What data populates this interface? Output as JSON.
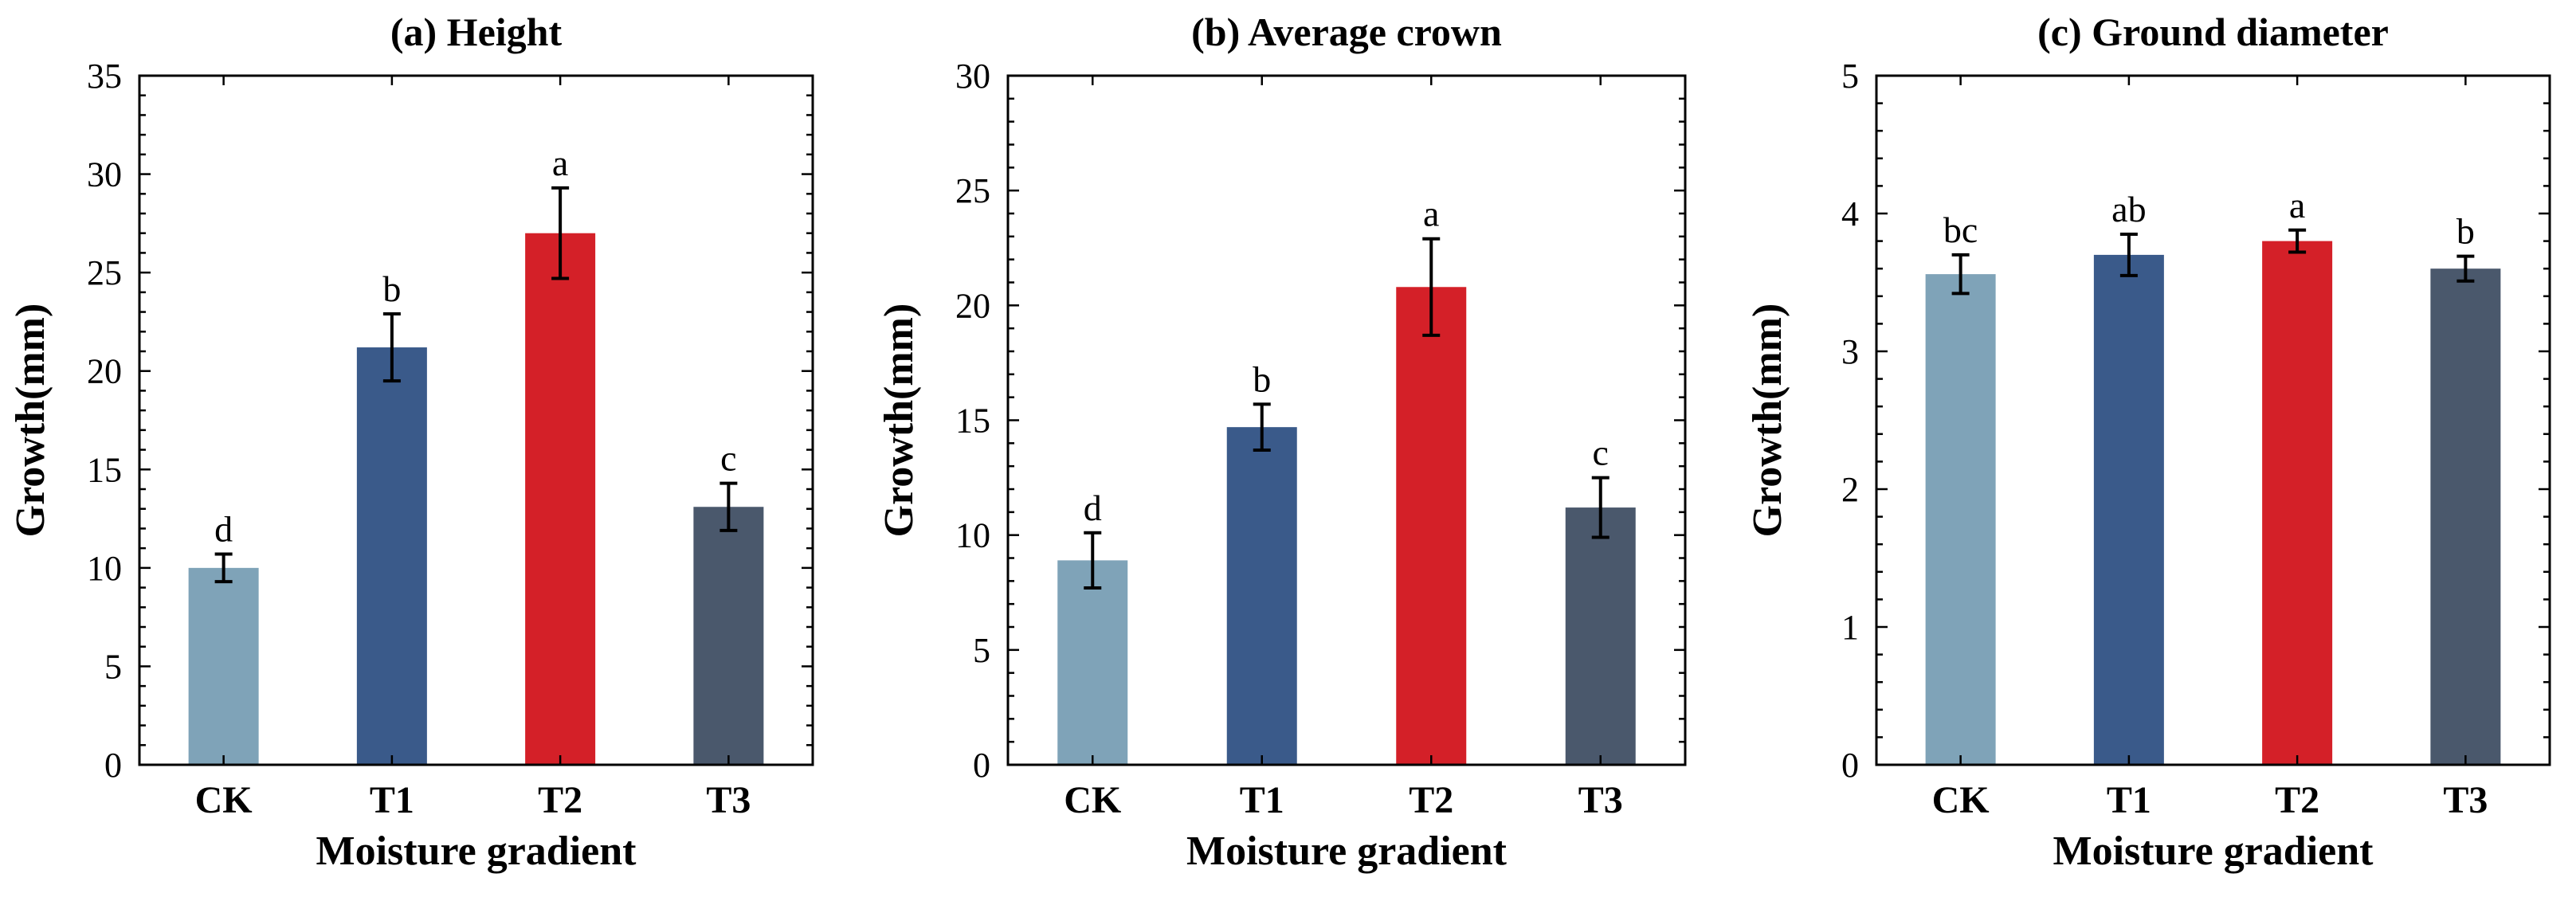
{
  "chart_data": [
    {
      "type": "bar",
      "title": "(a) Height",
      "xlabel": "Moisture gradient",
      "ylabel": "Growth(mm)",
      "ylim": [
        0,
        35
      ],
      "yticks": [
        0,
        5,
        10,
        15,
        20,
        25,
        30,
        35
      ],
      "categories": [
        "CK",
        "T1",
        "T2",
        "T3"
      ],
      "values": [
        10.0,
        21.2,
        27.0,
        13.1
      ],
      "errors": [
        0.7,
        1.7,
        2.3,
        1.2
      ],
      "significance": [
        "d",
        "b",
        "a",
        "c"
      ],
      "colors": [
        "#7fa3b8",
        "#3a5a8a",
        "#d42028",
        "#4a586c"
      ]
    },
    {
      "type": "bar",
      "title": "(b) Average crown",
      "xlabel": "Moisture gradient",
      "ylabel": "Growth(mm)",
      "ylim": [
        0,
        30
      ],
      "yticks": [
        0,
        5,
        10,
        15,
        20,
        25,
        30
      ],
      "categories": [
        "CK",
        "T1",
        "T2",
        "T3"
      ],
      "values": [
        8.9,
        14.7,
        20.8,
        11.2
      ],
      "errors": [
        1.2,
        1.0,
        2.1,
        1.3
      ],
      "significance": [
        "d",
        "b",
        "a",
        "c"
      ],
      "colors": [
        "#7fa3b8",
        "#3a5a8a",
        "#d42028",
        "#4a586c"
      ]
    },
    {
      "type": "bar",
      "title": "(c) Ground diameter",
      "xlabel": "Moisture gradient",
      "ylabel": "Growth(mm)",
      "ylim": [
        0,
        5
      ],
      "yticks": [
        0,
        1,
        2,
        3,
        4,
        5
      ],
      "categories": [
        "CK",
        "T1",
        "T2",
        "T3"
      ],
      "values": [
        3.56,
        3.7,
        3.8,
        3.6
      ],
      "errors": [
        0.14,
        0.15,
        0.08,
        0.09
      ],
      "significance": [
        "bc",
        "ab",
        "a",
        "b"
      ],
      "colors": [
        "#7fa3b8",
        "#3a5a8a",
        "#d42028",
        "#4a586c"
      ]
    }
  ]
}
